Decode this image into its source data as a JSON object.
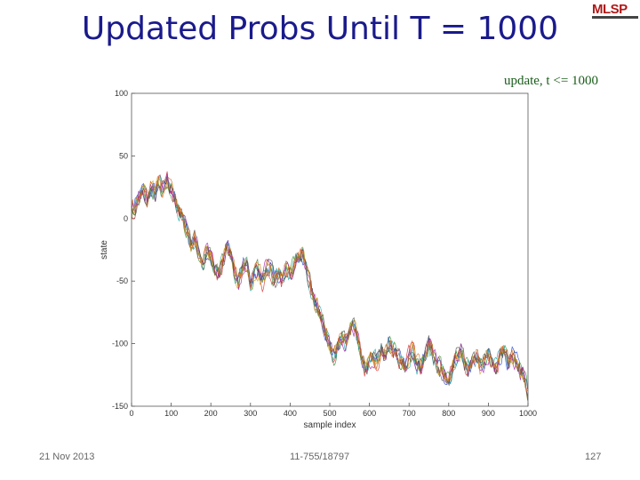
{
  "slide": {
    "title": "Updated Probs Until T = 1000",
    "logo": "MLSP",
    "footer_date": "21 Nov 2013",
    "footer_course": "11-755/18797",
    "page_number": "127"
  },
  "chart_data": {
    "type": "line",
    "title": "update, t <= 1000",
    "xlabel": "sample index",
    "ylabel": "state",
    "xlim": [
      0,
      1000
    ],
    "ylim": [
      -150,
      100
    ],
    "xticks": [
      0,
      100,
      200,
      300,
      400,
      500,
      600,
      700,
      800,
      900,
      1000
    ],
    "yticks": [
      100,
      50,
      0,
      -50,
      -100,
      -150
    ],
    "grid": false,
    "legend": "none",
    "series_count_visible": 8,
    "x": [
      0,
      10,
      20,
      30,
      40,
      50,
      60,
      70,
      80,
      90,
      100,
      110,
      120,
      130,
      140,
      150,
      160,
      170,
      180,
      190,
      200,
      210,
      220,
      230,
      240,
      250,
      260,
      270,
      280,
      290,
      300,
      310,
      320,
      330,
      340,
      350,
      360,
      370,
      380,
      390,
      400,
      410,
      420,
      430,
      440,
      450,
      460,
      470,
      480,
      490,
      500,
      510,
      520,
      530,
      540,
      550,
      560,
      570,
      580,
      590,
      600,
      610,
      620,
      630,
      640,
      650,
      660,
      670,
      680,
      690,
      700,
      710,
      720,
      730,
      740,
      750,
      760,
      770,
      780,
      790,
      800,
      810,
      820,
      830,
      840,
      850,
      860,
      870,
      880,
      890,
      900,
      910,
      920,
      930,
      940,
      950,
      960,
      970,
      980,
      990,
      1000
    ],
    "mean": [
      5,
      10,
      18,
      22,
      15,
      25,
      20,
      28,
      22,
      30,
      25,
      15,
      5,
      0,
      -10,
      -20,
      -15,
      -30,
      -35,
      -25,
      -30,
      -40,
      -45,
      -35,
      -20,
      -28,
      -45,
      -50,
      -40,
      -35,
      -55,
      -45,
      -42,
      -50,
      -40,
      -38,
      -50,
      -45,
      -50,
      -40,
      -45,
      -35,
      -30,
      -28,
      -40,
      -50,
      -65,
      -70,
      -80,
      -90,
      -100,
      -110,
      -105,
      -95,
      -100,
      -90,
      -85,
      -95,
      -110,
      -120,
      -115,
      -110,
      -115,
      -105,
      -110,
      -100,
      -105,
      -110,
      -115,
      -120,
      -110,
      -105,
      -115,
      -120,
      -110,
      -100,
      -110,
      -115,
      -120,
      -125,
      -130,
      -120,
      -110,
      -105,
      -115,
      -120,
      -115,
      -110,
      -120,
      -115,
      -110,
      -115,
      -120,
      -110,
      -105,
      -115,
      -110,
      -115,
      -120,
      -125,
      -140
    ],
    "spread": 12,
    "colors": [
      "#1f3fd1",
      "#2e8b2e",
      "#d12a2a",
      "#1aa6a6",
      "#a61fa6",
      "#d1a61a",
      "#4d4d4d",
      "#d16a1a"
    ]
  }
}
